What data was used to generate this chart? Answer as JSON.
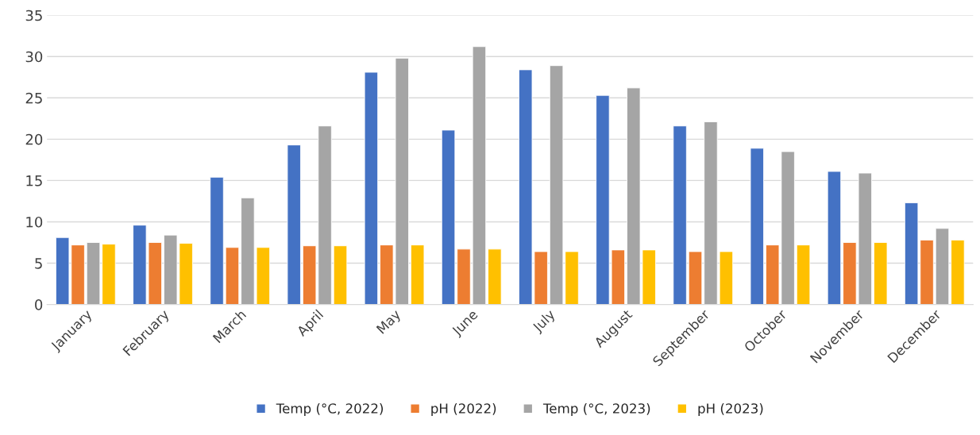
{
  "chart_data": {
    "type": "bar",
    "categories": [
      "January",
      "February",
      "March",
      "April",
      "May",
      "June",
      "July",
      "August",
      "September",
      "October",
      "November",
      "December"
    ],
    "series": [
      {
        "name": "Temp (°C, 2022)",
        "color": "#4472c4",
        "values": [
          8.1,
          9.6,
          15.4,
          19.3,
          28.1,
          21.1,
          28.4,
          25.3,
          21.6,
          18.9,
          16.1,
          12.3
        ]
      },
      {
        "name": "pH (2022)",
        "color": "#ed7d31",
        "values": [
          7.2,
          7.5,
          6.9,
          7.1,
          7.2,
          6.7,
          6.4,
          6.6,
          6.4,
          7.2,
          7.5,
          7.8
        ]
      },
      {
        "name": "Temp (°C, 2023)",
        "color": "#a5a5a5",
        "values": [
          7.5,
          8.4,
          12.9,
          21.6,
          29.8,
          31.2,
          28.9,
          26.2,
          22.1,
          18.5,
          15.9,
          9.2
        ]
      },
      {
        "name": "pH (2023)",
        "color": "#ffc000",
        "values": [
          7.3,
          7.4,
          6.9,
          7.1,
          7.2,
          6.7,
          6.4,
          6.6,
          6.4,
          7.2,
          7.5,
          7.8
        ]
      }
    ],
    "ylim": [
      0,
      35
    ],
    "yticks": [
      0,
      5,
      10,
      15,
      20,
      25,
      30,
      35
    ],
    "grid": "y",
    "legend": "bottom"
  }
}
